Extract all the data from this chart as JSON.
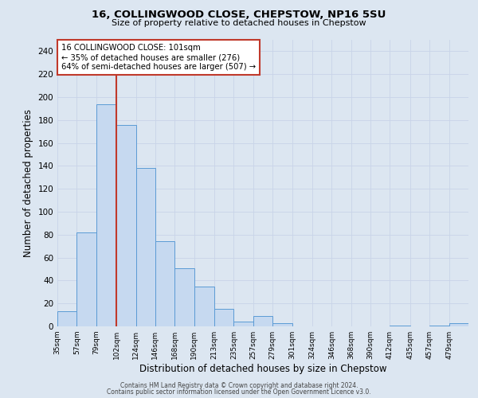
{
  "title": "16, COLLINGWOOD CLOSE, CHEPSTOW, NP16 5SU",
  "subtitle": "Size of property relative to detached houses in Chepstow",
  "xlabel": "Distribution of detached houses by size in Chepstow",
  "ylabel": "Number of detached properties",
  "bin_labels": [
    "35sqm",
    "57sqm",
    "79sqm",
    "102sqm",
    "124sqm",
    "146sqm",
    "168sqm",
    "190sqm",
    "213sqm",
    "235sqm",
    "257sqm",
    "279sqm",
    "301sqm",
    "324sqm",
    "346sqm",
    "368sqm",
    "390sqm",
    "412sqm",
    "435sqm",
    "457sqm",
    "479sqm"
  ],
  "bin_edges": [
    35,
    57,
    79,
    102,
    124,
    146,
    168,
    190,
    213,
    235,
    257,
    279,
    301,
    324,
    346,
    368,
    390,
    412,
    435,
    457,
    479,
    501
  ],
  "bar_heights": [
    13,
    82,
    194,
    176,
    138,
    74,
    51,
    35,
    15,
    4,
    9,
    3,
    0,
    0,
    0,
    0,
    0,
    1,
    0,
    1,
    3
  ],
  "bar_color": "#c6d9f0",
  "bar_edge_color": "#5b9bd5",
  "property_line_x": 102,
  "property_line_color": "#c0392b",
  "annotation_text": "16 COLLINGWOOD CLOSE: 101sqm\n← 35% of detached houses are smaller (276)\n64% of semi-detached houses are larger (507) →",
  "annotation_box_color": "#ffffff",
  "annotation_box_edge_color": "#c0392b",
  "ylim": [
    0,
    250
  ],
  "yticks": [
    0,
    20,
    40,
    60,
    80,
    100,
    120,
    140,
    160,
    180,
    200,
    220,
    240
  ],
  "grid_color": "#c8d4e8",
  "background_color": "#dce6f1",
  "footer_line1": "Contains HM Land Registry data © Crown copyright and database right 2024.",
  "footer_line2": "Contains public sector information licensed under the Open Government Licence v3.0."
}
